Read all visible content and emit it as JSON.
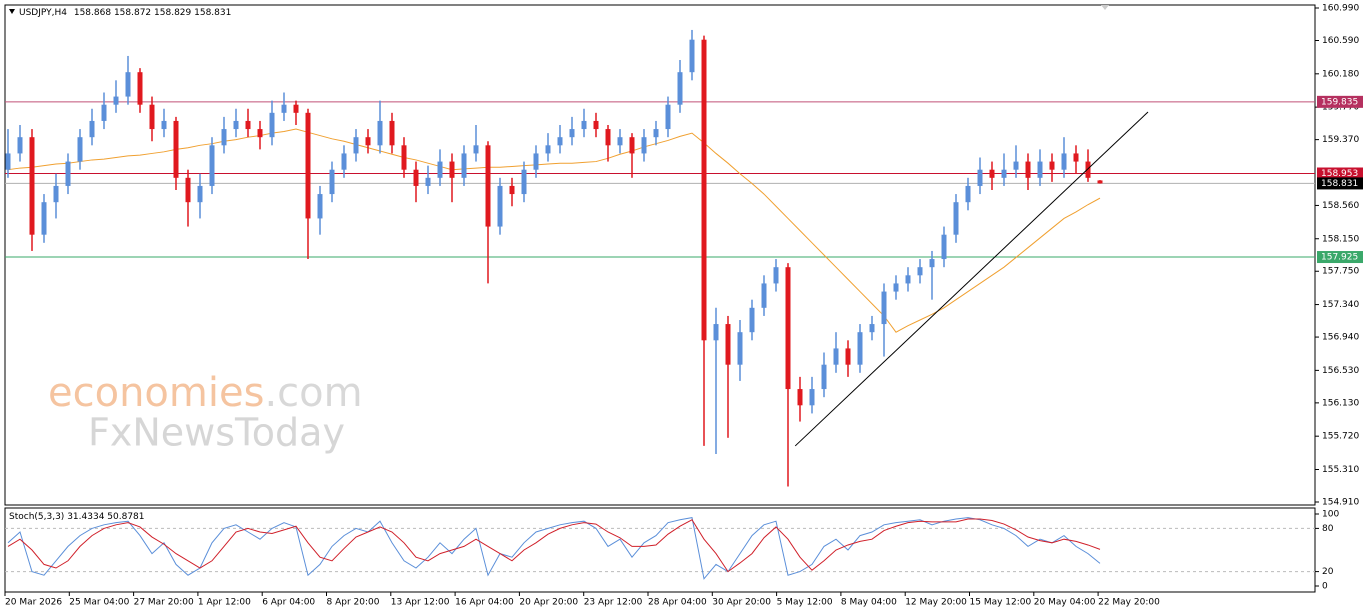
{
  "chart_data": {
    "type": "candlestick",
    "symbol": "USDJPY,H4",
    "ylim": [
      154.873,
      161.027
    ],
    "yticks": [
      {
        "value": 160.99,
        "label": "160.990"
      },
      {
        "value": 160.59,
        "label": "160.590"
      },
      {
        "value": 160.18,
        "label": "160.180"
      },
      {
        "value": 159.77,
        "label": "159.770"
      },
      {
        "value": 159.37,
        "label": "159.370"
      },
      {
        "value": 158.56,
        "label": "158.560"
      },
      {
        "value": 158.15,
        "label": "158.150"
      },
      {
        "value": 157.75,
        "label": "157.750"
      },
      {
        "value": 157.34,
        "label": "157.340"
      },
      {
        "value": 156.94,
        "label": "156.940"
      },
      {
        "value": 156.53,
        "label": "156.530"
      },
      {
        "value": 156.13,
        "label": "156.130"
      },
      {
        "value": 155.72,
        "label": "155.720"
      },
      {
        "value": 155.31,
        "label": "155.310"
      },
      {
        "value": 154.91,
        "label": "154.910"
      }
    ],
    "x_labels": [
      "20 Mar 2026",
      "25 Mar 04:00",
      "27 Mar 20:00",
      "1 Apr 12:00",
      "6 Apr 04:00",
      "8 Apr 20:00",
      "13 Apr 12:00",
      "16 Apr 04:00",
      "20 Apr 20:00",
      "23 Apr 12:00",
      "28 Apr 04:00",
      "30 Apr 20:00",
      "5 May 12:00",
      "8 May 04:00",
      "12 May 20:00",
      "15 May 12:00",
      "20 May 04:00",
      "22 May 20:00"
    ],
    "up_color": "#5b8fd9",
    "down_color": "#e0191f",
    "candles": [
      [
        159.0,
        159.5,
        158.9,
        159.2
      ],
      [
        159.2,
        159.55,
        159.1,
        159.4
      ],
      [
        159.4,
        159.5,
        158.0,
        158.2
      ],
      [
        158.2,
        158.7,
        158.1,
        158.6
      ],
      [
        158.6,
        158.95,
        158.4,
        158.8
      ],
      [
        158.8,
        159.2,
        158.7,
        159.1
      ],
      [
        159.1,
        159.5,
        159.0,
        159.4
      ],
      [
        159.4,
        159.75,
        159.3,
        159.6
      ],
      [
        159.6,
        159.95,
        159.5,
        159.8
      ],
      [
        159.8,
        160.1,
        159.7,
        159.9
      ],
      [
        159.9,
        160.4,
        159.8,
        160.2
      ],
      [
        160.2,
        160.25,
        159.7,
        159.8
      ],
      [
        159.8,
        159.9,
        159.35,
        159.5
      ],
      [
        159.5,
        159.75,
        159.4,
        159.6
      ],
      [
        159.6,
        159.65,
        158.75,
        158.9
      ],
      [
        158.9,
        159.0,
        158.3,
        158.6
      ],
      [
        158.6,
        158.95,
        158.4,
        158.8
      ],
      [
        158.8,
        159.4,
        158.7,
        159.3
      ],
      [
        159.3,
        159.65,
        159.2,
        159.5
      ],
      [
        159.5,
        159.75,
        159.4,
        159.6
      ],
      [
        159.6,
        159.75,
        159.4,
        159.5
      ],
      [
        159.5,
        159.6,
        159.25,
        159.4
      ],
      [
        159.4,
        159.85,
        159.3,
        159.7
      ],
      [
        159.7,
        159.95,
        159.6,
        159.8
      ],
      [
        159.8,
        159.85,
        159.55,
        159.7
      ],
      [
        159.7,
        159.75,
        157.9,
        158.4
      ],
      [
        158.4,
        158.8,
        158.2,
        158.7
      ],
      [
        158.7,
        159.1,
        158.6,
        159.0
      ],
      [
        159.0,
        159.3,
        158.9,
        159.2
      ],
      [
        159.2,
        159.5,
        159.1,
        159.4
      ],
      [
        159.4,
        159.5,
        159.2,
        159.3
      ],
      [
        159.3,
        159.85,
        159.2,
        159.6
      ],
      [
        159.6,
        159.7,
        159.2,
        159.3
      ],
      [
        159.3,
        159.4,
        158.9,
        159.0
      ],
      [
        159.0,
        159.1,
        158.6,
        158.8
      ],
      [
        158.8,
        159.05,
        158.7,
        158.9
      ],
      [
        158.9,
        159.25,
        158.8,
        159.1
      ],
      [
        159.1,
        159.2,
        158.6,
        158.9
      ],
      [
        158.9,
        159.3,
        158.8,
        159.2
      ],
      [
        159.2,
        159.55,
        159.1,
        159.3
      ],
      [
        159.3,
        159.35,
        157.6,
        158.3
      ],
      [
        158.3,
        158.9,
        158.2,
        158.8
      ],
      [
        158.8,
        158.9,
        158.55,
        158.7
      ],
      [
        158.7,
        159.1,
        158.6,
        159.0
      ],
      [
        159.0,
        159.3,
        158.9,
        159.2
      ],
      [
        159.2,
        159.45,
        159.1,
        159.3
      ],
      [
        159.3,
        159.55,
        159.2,
        159.4
      ],
      [
        159.4,
        159.65,
        159.3,
        159.5
      ],
      [
        159.5,
        159.75,
        159.4,
        159.6
      ],
      [
        159.6,
        159.7,
        159.4,
        159.5
      ],
      [
        159.5,
        159.55,
        159.1,
        159.3
      ],
      [
        159.3,
        159.5,
        159.2,
        159.4
      ],
      [
        159.4,
        159.45,
        158.9,
        159.2
      ],
      [
        159.2,
        159.5,
        159.1,
        159.4
      ],
      [
        159.4,
        159.6,
        159.3,
        159.5
      ],
      [
        159.5,
        159.9,
        159.4,
        159.8
      ],
      [
        159.8,
        160.35,
        159.7,
        160.2
      ],
      [
        160.2,
        160.72,
        160.1,
        160.6
      ],
      [
        160.6,
        160.65,
        155.6,
        156.9
      ],
      [
        156.9,
        157.3,
        155.5,
        157.1
      ],
      [
        157.1,
        157.2,
        155.7,
        156.6
      ],
      [
        156.6,
        157.15,
        156.4,
        157.0
      ],
      [
        157.0,
        157.4,
        156.9,
        157.3
      ],
      [
        157.3,
        157.7,
        157.2,
        157.6
      ],
      [
        157.6,
        157.9,
        157.5,
        157.8
      ],
      [
        157.8,
        157.85,
        155.1,
        156.3
      ],
      [
        156.3,
        156.45,
        155.9,
        156.1
      ],
      [
        156.1,
        156.45,
        156.0,
        156.3
      ],
      [
        156.3,
        156.75,
        156.2,
        156.6
      ],
      [
        156.6,
        157.0,
        156.5,
        156.8
      ],
      [
        156.8,
        156.9,
        156.45,
        156.6
      ],
      [
        156.6,
        157.1,
        156.5,
        157.0
      ],
      [
        157.0,
        157.2,
        156.9,
        157.1
      ],
      [
        157.1,
        157.6,
        156.7,
        157.5
      ],
      [
        157.5,
        157.7,
        157.4,
        157.6
      ],
      [
        157.6,
        157.8,
        157.5,
        157.7
      ],
      [
        157.7,
        157.9,
        157.6,
        157.8
      ],
      [
        157.8,
        158.0,
        157.4,
        157.9
      ],
      [
        157.9,
        158.3,
        157.8,
        158.2
      ],
      [
        158.2,
        158.7,
        158.1,
        158.6
      ],
      [
        158.6,
        158.9,
        158.5,
        158.8
      ],
      [
        158.8,
        159.15,
        158.7,
        159.0
      ],
      [
        159.0,
        159.1,
        158.75,
        158.9
      ],
      [
        158.9,
        159.2,
        158.8,
        159.0
      ],
      [
        159.0,
        159.3,
        158.9,
        159.1
      ],
      [
        159.1,
        159.2,
        158.75,
        158.9
      ],
      [
        158.9,
        159.25,
        158.8,
        159.1
      ],
      [
        159.1,
        159.2,
        158.85,
        159.0
      ],
      [
        159.0,
        159.4,
        158.9,
        159.2
      ],
      [
        159.2,
        159.3,
        158.95,
        159.1
      ],
      [
        159.1,
        159.25,
        158.85,
        158.9
      ],
      [
        158.868,
        158.872,
        158.829,
        158.831
      ]
    ],
    "ma": {
      "color": "#f0a030",
      "values": [
        159.0,
        159.02,
        159.03,
        159.05,
        159.07,
        159.08,
        159.1,
        159.12,
        159.13,
        159.15,
        159.17,
        159.18,
        159.2,
        159.22,
        159.25,
        159.27,
        159.3,
        159.32,
        159.35,
        159.37,
        159.4,
        159.42,
        159.45,
        159.47,
        159.5,
        159.46,
        159.42,
        159.38,
        159.35,
        159.31,
        159.27,
        159.23,
        159.19,
        159.15,
        159.12,
        159.08,
        159.04,
        159.0,
        159.01,
        159.02,
        159.03,
        159.03,
        159.04,
        159.05,
        159.06,
        159.07,
        159.08,
        159.08,
        159.09,
        159.1,
        159.14,
        159.19,
        159.23,
        159.28,
        159.32,
        159.36,
        159.41,
        159.45,
        159.33,
        159.2,
        159.08,
        158.95,
        158.83,
        158.7,
        158.55,
        158.4,
        158.25,
        158.1,
        157.95,
        157.8,
        157.65,
        157.5,
        157.35,
        157.2,
        157.0,
        157.08,
        157.15,
        157.22,
        157.3,
        157.4,
        157.5,
        157.6,
        157.7,
        157.8,
        157.92,
        158.04,
        158.16,
        158.28,
        158.4,
        158.48,
        158.57,
        158.65
      ]
    },
    "trendline": {
      "color": "#000000",
      "x": [
        65.6,
        95
      ],
      "y": [
        155.6,
        159.71
      ]
    },
    "levels": [
      {
        "value": 159.835,
        "color": "#b5305f",
        "line_color": "#c05078"
      },
      {
        "value": 158.953,
        "color": "#c8102e",
        "line_color": "#c8102e"
      },
      {
        "value": 158.831,
        "color": "#000000",
        "line_color": "#b0b0b0"
      },
      {
        "value": 157.925,
        "color": "#3aa86a",
        "line_color": "#3aa86a"
      }
    ],
    "stochastic": {
      "name": "Stoch(5,3,3)",
      "ylim": [
        0,
        100
      ],
      "yticks": [
        100,
        80,
        20,
        0
      ],
      "levels": [
        80,
        20
      ],
      "series": [
        {
          "color": "#5b8fd9",
          "values": [
            60,
            75,
            20,
            15,
            35,
            55,
            70,
            80,
            85,
            88,
            90,
            70,
            45,
            60,
            30,
            15,
            25,
            60,
            80,
            85,
            75,
            65,
            80,
            88,
            82,
            15,
            30,
            55,
            70,
            80,
            75,
            90,
            60,
            35,
            25,
            40,
            60,
            45,
            65,
            80,
            15,
            45,
            40,
            60,
            75,
            80,
            85,
            88,
            90,
            80,
            55,
            65,
            40,
            60,
            70,
            88,
            92,
            95,
            10,
            30,
            20,
            45,
            70,
            85,
            90,
            15,
            20,
            30,
            55,
            65,
            50,
            70,
            75,
            85,
            88,
            90,
            92,
            85,
            90,
            93,
            95,
            92,
            85,
            80,
            70,
            55,
            65,
            60,
            70,
            55,
            45,
            31.4334
          ]
        },
        {
          "color": "#d0202a",
          "values": [
            55,
            65,
            50,
            30,
            25,
            35,
            55,
            70,
            80,
            85,
            88,
            82,
            68,
            58,
            45,
            35,
            25,
            35,
            55,
            75,
            80,
            75,
            73,
            78,
            83,
            60,
            40,
            35,
            52,
            68,
            75,
            82,
            75,
            60,
            40,
            35,
            45,
            50,
            55,
            65,
            55,
            45,
            35,
            50,
            60,
            72,
            80,
            85,
            88,
            86,
            75,
            67,
            55,
            55,
            57,
            72,
            83,
            92,
            65,
            45,
            20,
            32,
            45,
            67,
            82,
            65,
            40,
            22,
            35,
            50,
            57,
            62,
            65,
            77,
            83,
            88,
            90,
            89,
            89,
            89,
            93,
            93,
            91,
            86,
            78,
            68,
            63,
            60,
            65,
            62,
            57,
            50.8781
          ]
        }
      ]
    },
    "watermark": {
      "brand": "economies",
      "domain": ".com",
      "second": "FxNewsToday"
    }
  }
}
